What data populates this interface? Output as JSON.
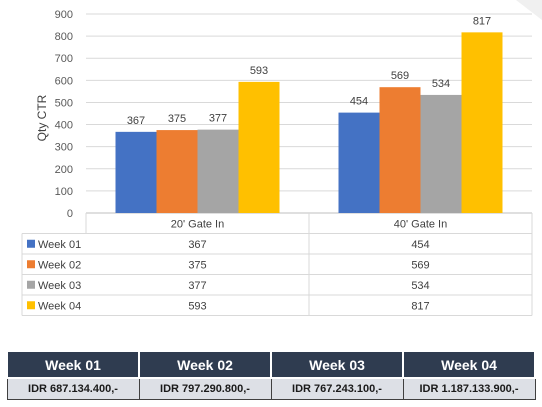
{
  "chart_data": {
    "type": "bar",
    "ylabel": "Qty CTR",
    "ylim": [
      0,
      900
    ],
    "yticks": [
      0,
      100,
      200,
      300,
      400,
      500,
      600,
      700,
      800,
      900
    ],
    "grid": true,
    "legend": "table-below",
    "categories": [
      "20' Gate In",
      "40' Gate In"
    ],
    "series": [
      {
        "name": "Week 01",
        "values": [
          367,
          454
        ],
        "color": "#4472c4"
      },
      {
        "name": "Week 02",
        "values": [
          375,
          569
        ],
        "color": "#ed7d31"
      },
      {
        "name": "Week 03",
        "values": [
          377,
          534
        ],
        "color": "#a5a5a5"
      },
      {
        "name": "Week 04",
        "values": [
          593,
          817
        ],
        "color": "#ffc000"
      }
    ]
  },
  "cost_table": {
    "headers": [
      "Week 01",
      "Week 02",
      "Week 03",
      "Week 04"
    ],
    "values": [
      "IDR 687.134.400,-",
      "IDR 797.290.800,-",
      "IDR 767.243.100,-",
      "IDR 1.187.133.900,-"
    ]
  }
}
